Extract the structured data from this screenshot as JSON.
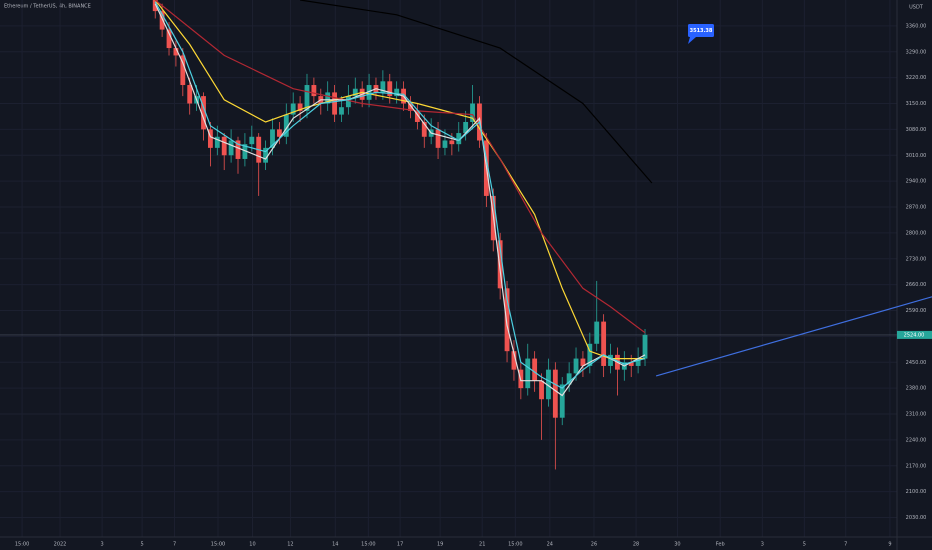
{
  "chart_data": {
    "type": "candlestick",
    "title": "Ethereum / TetherUS, 4h, BINANCE",
    "y_axis_label": "USDT",
    "ylim": [
      1980,
      3430
    ],
    "yticks": [
      {
        "value": 2030,
        "label": "2030.00"
      },
      {
        "value": 2100,
        "label": "2100.00"
      },
      {
        "value": 2170,
        "label": "2170.00"
      },
      {
        "value": 2240,
        "label": "2240.00"
      },
      {
        "value": 2310,
        "label": "2310.00"
      },
      {
        "value": 2380,
        "label": "2380.00"
      },
      {
        "value": 2450,
        "label": "2450.00"
      },
      {
        "value": 2520,
        "label": "2520.00"
      },
      {
        "value": 2590,
        "label": "2590.00"
      },
      {
        "value": 2660,
        "label": "2660.00"
      },
      {
        "value": 2730,
        "label": "2730.00"
      },
      {
        "value": 2800,
        "label": "2800.00"
      },
      {
        "value": 2870,
        "label": "2870.00"
      },
      {
        "value": 2940,
        "label": "2940.00"
      },
      {
        "value": 3010,
        "label": "3010.00"
      },
      {
        "value": 3080,
        "label": "3080.00"
      },
      {
        "value": 3150,
        "label": "3150.00"
      },
      {
        "value": 3220,
        "label": "3220.00"
      },
      {
        "value": 3290,
        "label": "3290.00"
      },
      {
        "value": 3360,
        "label": "3360.00"
      }
    ],
    "xlim": [
      -22.5,
      112.6
    ],
    "xticks": [
      {
        "value": -19.3,
        "label": "15:00"
      },
      {
        "value": -13.8,
        "label": "2022"
      },
      {
        "value": -7.7,
        "label": "3"
      },
      {
        "value": -1.9,
        "label": "5"
      },
      {
        "value": 2.8,
        "label": "7"
      },
      {
        "value": 9.1,
        "label": "15:00"
      },
      {
        "value": 14.1,
        "label": "10"
      },
      {
        "value": 19.6,
        "label": "12"
      },
      {
        "value": 26.1,
        "label": "14"
      },
      {
        "value": 30.9,
        "label": "15:00"
      },
      {
        "value": 35.5,
        "label": "17"
      },
      {
        "value": 41.3,
        "label": "19"
      },
      {
        "value": 47.4,
        "label": "21"
      },
      {
        "value": 52.2,
        "label": "15:00"
      },
      {
        "value": 57.2,
        "label": "24"
      },
      {
        "value": 63.6,
        "label": "26"
      },
      {
        "value": 69.7,
        "label": "28"
      },
      {
        "value": 75.7,
        "label": "30"
      },
      {
        "value": 81.9,
        "label": "Feb"
      },
      {
        "value": 88,
        "label": "3"
      },
      {
        "value": 94.1,
        "label": "5"
      },
      {
        "value": 100.1,
        "label": "7"
      },
      {
        "value": 106.5,
        "label": "9"
      }
    ],
    "up_color": "#26a69a",
    "down_color": "#ef5350",
    "ohlc": [
      [
        3430,
        3440,
        3380,
        3400
      ],
      [
        3400,
        3420,
        3330,
        3350
      ],
      [
        3350,
        3370,
        3280,
        3300
      ],
      [
        3300,
        3320,
        3250,
        3280
      ],
      [
        3280,
        3300,
        3170,
        3200
      ],
      [
        3200,
        3220,
        3120,
        3150
      ],
      [
        3150,
        3200,
        3130,
        3170
      ],
      [
        3170,
        3180,
        3050,
        3080
      ],
      [
        3080,
        3100,
        2980,
        3030
      ],
      [
        3030,
        3090,
        3010,
        3060
      ],
      [
        3060,
        3070,
        2970,
        3010
      ],
      [
        3010,
        3080,
        2990,
        3050
      ],
      [
        3050,
        3060,
        2960,
        3000
      ],
      [
        3000,
        3070,
        2980,
        3040
      ],
      [
        3040,
        3090,
        3020,
        3060
      ],
      [
        3060,
        3070,
        2900,
        2990
      ],
      [
        2990,
        3050,
        2970,
        3030
      ],
      [
        3030,
        3110,
        3010,
        3080
      ],
      [
        3080,
        3100,
        3040,
        3060
      ],
      [
        3060,
        3150,
        3040,
        3120
      ],
      [
        3120,
        3180,
        3100,
        3150
      ],
      [
        3150,
        3170,
        3100,
        3130
      ],
      [
        3130,
        3230,
        3110,
        3200
      ],
      [
        3200,
        3220,
        3150,
        3170
      ],
      [
        3170,
        3190,
        3120,
        3150
      ],
      [
        3150,
        3210,
        3130,
        3180
      ],
      [
        3180,
        3200,
        3100,
        3120
      ],
      [
        3120,
        3170,
        3100,
        3140
      ],
      [
        3140,
        3200,
        3120,
        3170
      ],
      [
        3170,
        3220,
        3150,
        3190
      ],
      [
        3190,
        3210,
        3140,
        3160
      ],
      [
        3160,
        3230,
        3140,
        3200
      ],
      [
        3200,
        3220,
        3160,
        3180
      ],
      [
        3180,
        3240,
        3160,
        3210
      ],
      [
        3210,
        3230,
        3150,
        3170
      ],
      [
        3170,
        3210,
        3150,
        3190
      ],
      [
        3190,
        3210,
        3130,
        3150
      ],
      [
        3150,
        3170,
        3110,
        3130
      ],
      [
        3130,
        3150,
        3080,
        3100
      ],
      [
        3100,
        3120,
        3030,
        3060
      ],
      [
        3060,
        3110,
        3040,
        3080
      ],
      [
        3080,
        3100,
        3000,
        3030
      ],
      [
        3030,
        3080,
        3010,
        3050
      ],
      [
        3050,
        3070,
        3010,
        3040
      ],
      [
        3040,
        3100,
        3020,
        3070
      ],
      [
        3070,
        3130,
        3050,
        3100
      ],
      [
        3100,
        3200,
        3080,
        3150
      ],
      [
        3150,
        3170,
        3030,
        3050
      ],
      [
        3050,
        3070,
        2870,
        2900
      ],
      [
        2900,
        2920,
        2750,
        2780
      ],
      [
        2780,
        2800,
        2620,
        2650
      ],
      [
        2650,
        2670,
        2450,
        2480
      ],
      [
        2480,
        2510,
        2400,
        2430
      ],
      [
        2430,
        2450,
        2350,
        2380
      ],
      [
        2380,
        2500,
        2360,
        2460
      ],
      [
        2460,
        2480,
        2370,
        2400
      ],
      [
        2400,
        2420,
        2240,
        2350
      ],
      [
        2350,
        2460,
        2330,
        2430
      ],
      [
        2430,
        2450,
        2160,
        2300
      ],
      [
        2300,
        2410,
        2280,
        2390
      ],
      [
        2390,
        2450,
        2370,
        2420
      ],
      [
        2420,
        2490,
        2400,
        2460
      ],
      [
        2460,
        2480,
        2410,
        2440
      ],
      [
        2440,
        2530,
        2420,
        2500
      ],
      [
        2500,
        2670,
        2480,
        2560
      ],
      [
        2560,
        2580,
        2410,
        2440
      ],
      [
        2440,
        2500,
        2420,
        2470
      ],
      [
        2470,
        2490,
        2360,
        2430
      ],
      [
        2430,
        2480,
        2400,
        2450
      ],
      [
        2450,
        2470,
        2410,
        2440
      ],
      [
        2440,
        2490,
        2420,
        2460
      ],
      [
        2460,
        2540,
        2440,
        2524
      ]
    ],
    "series": [
      {
        "color": "#fdd835",
        "x": [
          0,
          5,
          10,
          16,
          22,
          30,
          38,
          46,
          50,
          55,
          59,
          63,
          66,
          71
        ],
        "values": [
          3430,
          3310,
          3160,
          3100,
          3140,
          3180,
          3150,
          3110,
          3000,
          2850,
          2650,
          2480,
          2460,
          2460
        ]
      },
      {
        "color": "#b22833",
        "x": [
          0,
          10,
          20,
          30,
          38,
          46,
          50,
          56,
          62,
          66,
          71
        ],
        "values": [
          3430,
          3280,
          3190,
          3150,
          3130,
          3120,
          3000,
          2800,
          2650,
          2600,
          2530
        ]
      },
      {
        "color": "#000000",
        "x": [
          21,
          35,
          50,
          62,
          72
        ],
        "values": [
          3430,
          3390,
          3300,
          3150,
          2935
        ]
      },
      {
        "color": "#e0e0e0",
        "x": [
          0,
          4,
          8,
          12,
          16,
          20,
          24,
          28,
          32,
          36,
          40,
          44,
          47,
          49,
          51,
          53,
          56,
          59,
          62,
          65,
          68,
          71
        ],
        "values": [
          3420,
          3260,
          3060,
          3030,
          3000,
          3110,
          3160,
          3160,
          3190,
          3170,
          3070,
          3050,
          3110,
          2850,
          2550,
          2400,
          2400,
          2360,
          2440,
          2470,
          2440,
          2470
        ]
      },
      {
        "color": "#4dd0e1",
        "x": [
          0,
          4,
          8,
          12,
          16,
          20,
          24,
          28,
          32,
          36,
          40,
          44,
          47,
          49,
          51,
          53,
          56,
          59,
          62,
          65,
          68,
          71
        ],
        "values": [
          3425,
          3290,
          3090,
          3040,
          3020,
          3090,
          3150,
          3160,
          3180,
          3175,
          3090,
          3050,
          3100,
          2900,
          2620,
          2450,
          2410,
          2380,
          2430,
          2470,
          2445,
          2460
        ]
      },
      {
        "color": "#3f6fe0",
        "x": [
          72.6,
          112.6
        ],
        "values": [
          2413,
          2627
        ]
      }
    ],
    "last_price": {
      "value": 2524,
      "label": "2524.00"
    },
    "annotation": "3513.38"
  }
}
